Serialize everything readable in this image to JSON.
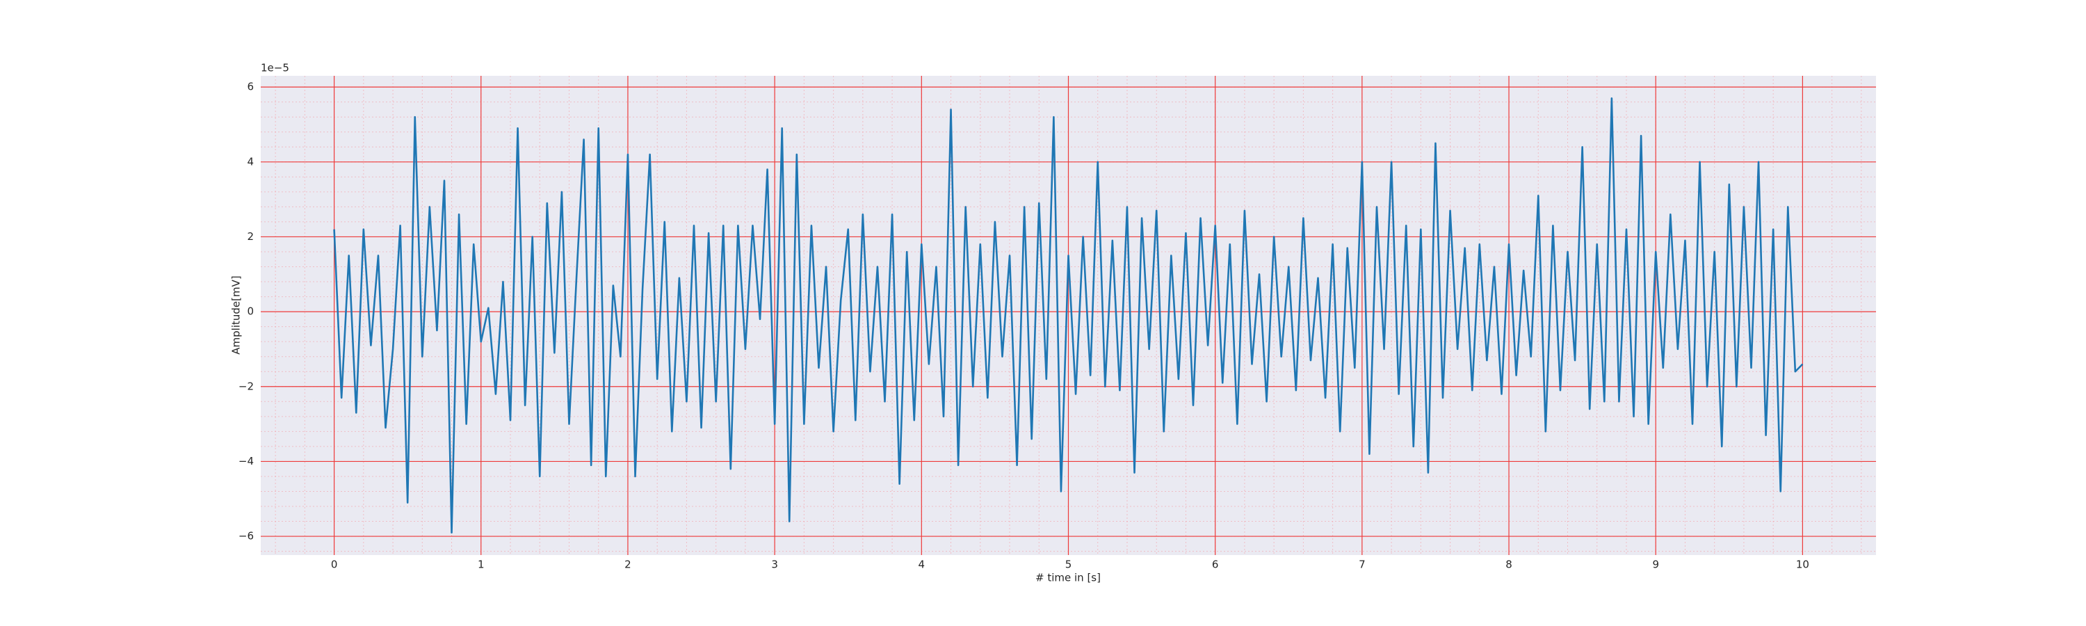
{
  "chart_data": {
    "type": "line",
    "xlabel": "# time in [s]",
    "ylabel": "Amplitude[mV]",
    "y_offset_text": "1e−5",
    "color": "#1f77b4",
    "grid": true,
    "minor_grid": true,
    "xlim": [
      -0.5,
      10.5
    ],
    "xticks": [
      0,
      1,
      2,
      3,
      4,
      5,
      6,
      7,
      8,
      9,
      10
    ],
    "ylim": [
      -6.5,
      6.3
    ],
    "yticks": [
      {
        "value": -6,
        "label": "−6"
      },
      {
        "value": -4,
        "label": "−4"
      },
      {
        "value": -2,
        "label": "−2"
      },
      0,
      2,
      4,
      6
    ],
    "x": [
      0,
      0.05,
      0.1,
      0.15,
      0.2,
      0.25,
      0.3,
      0.35,
      0.4,
      0.45,
      0.5,
      0.55,
      0.6,
      0.65,
      0.7,
      0.75,
      0.8,
      0.85,
      0.9,
      0.95,
      1,
      1.05,
      1.1,
      1.15,
      1.2,
      1.25,
      1.3,
      1.35,
      1.4,
      1.45,
      1.5,
      1.55,
      1.6,
      1.65,
      1.7,
      1.75,
      1.8,
      1.85,
      1.9,
      1.95,
      2,
      2.05,
      2.1,
      2.15,
      2.2,
      2.25,
      2.3,
      2.35,
      2.4,
      2.45,
      2.5,
      2.55,
      2.6,
      2.65,
      2.7,
      2.75,
      2.8,
      2.85,
      2.9,
      2.95,
      3,
      3.05,
      3.1,
      3.15,
      3.2,
      3.25,
      3.3,
      3.35,
      3.4,
      3.45,
      3.5,
      3.55,
      3.6,
      3.65,
      3.7,
      3.75,
      3.8,
      3.85,
      3.9,
      3.95,
      4,
      4.05,
      4.1,
      4.15,
      4.2,
      4.25,
      4.3,
      4.35,
      4.4,
      4.45,
      4.5,
      4.55,
      4.6,
      4.65,
      4.7,
      4.75,
      4.8,
      4.85,
      4.9,
      4.95,
      5,
      5.05,
      5.1,
      5.15,
      5.2,
      5.25,
      5.3,
      5.35,
      5.4,
      5.45,
      5.5,
      5.55,
      5.6,
      5.65,
      5.7,
      5.75,
      5.8,
      5.85,
      5.9,
      5.95,
      6,
      6.05,
      6.1,
      6.15,
      6.2,
      6.25,
      6.3,
      6.35,
      6.4,
      6.45,
      6.5,
      6.55,
      6.6,
      6.65,
      6.7,
      6.75,
      6.8,
      6.85,
      6.9,
      6.95,
      7,
      7.05,
      7.1,
      7.15,
      7.2,
      7.25,
      7.3,
      7.35,
      7.4,
      7.45,
      7.5,
      7.55,
      7.6,
      7.65,
      7.7,
      7.75,
      7.8,
      7.85,
      7.9,
      7.95,
      8,
      8.05,
      8.1,
      8.15,
      8.2,
      8.25,
      8.3,
      8.35,
      8.4,
      8.45,
      8.5,
      8.55,
      8.6,
      8.65,
      8.7,
      8.75,
      8.8,
      8.85,
      8.9,
      8.95,
      9,
      9.05,
      9.1,
      9.15,
      9.2,
      9.25,
      9.3,
      9.35,
      9.4,
      9.45,
      9.5,
      9.55,
      9.6,
      9.65,
      9.7,
      9.75,
      9.8,
      9.85,
      9.9,
      9.95,
      10
    ],
    "values": [
      2.2,
      -2.3,
      1.5,
      -2.7,
      2.2,
      -0.9,
      1.5,
      -3.1,
      -1.0,
      2.3,
      -5.1,
      5.2,
      -1.2,
      2.8,
      -0.5,
      3.5,
      -5.9,
      2.6,
      -3.0,
      1.8,
      -0.8,
      0.1,
      -2.2,
      0.8,
      -2.9,
      4.9,
      -2.5,
      2.0,
      -4.4,
      2.9,
      -1.1,
      3.2,
      -3.0,
      0.9,
      4.6,
      -4.1,
      4.9,
      -4.4,
      0.7,
      -1.2,
      4.2,
      -4.4,
      0.6,
      4.2,
      -1.8,
      2.4,
      -3.2,
      0.9,
      -2.4,
      2.3,
      -3.1,
      2.1,
      -2.4,
      2.3,
      -4.2,
      2.3,
      -1.0,
      2.3,
      -0.2,
      3.8,
      -3.0,
      4.9,
      -5.6,
      4.2,
      -3.0,
      2.3,
      -1.5,
      1.2,
      -3.2,
      0.3,
      2.2,
      -2.9,
      2.6,
      -1.6,
      1.2,
      -2.4,
      2.6,
      -4.6,
      1.6,
      -2.9,
      1.8,
      -1.4,
      1.2,
      -2.8,
      5.4,
      -4.1,
      2.8,
      -2.0,
      1.8,
      -2.3,
      2.4,
      -1.2,
      1.5,
      -4.1,
      2.8,
      -3.4,
      2.9,
      -1.8,
      5.2,
      -4.8,
      1.5,
      -2.2,
      2.0,
      -1.7,
      4.0,
      -2.0,
      1.9,
      -2.1,
      2.8,
      -4.3,
      2.5,
      -1.0,
      2.7,
      -3.2,
      1.5,
      -1.8,
      2.1,
      -2.5,
      2.5,
      -0.9,
      2.3,
      -1.9,
      1.8,
      -3.0,
      2.7,
      -1.4,
      1.0,
      -2.4,
      2.0,
      -1.2,
      1.2,
      -2.1,
      2.5,
      -1.3,
      0.9,
      -2.3,
      1.8,
      -3.2,
      1.7,
      -1.5,
      4.0,
      -3.8,
      2.8,
      -1.0,
      4.0,
      -2.2,
      2.3,
      -3.6,
      2.2,
      -4.3,
      4.5,
      -2.3,
      2.7,
      -1.0,
      1.7,
      -2.1,
      1.8,
      -1.3,
      1.2,
      -2.2,
      1.8,
      -1.7,
      1.1,
      -1.2,
      3.1,
      -3.2,
      2.3,
      -2.1,
      1.6,
      -1.3,
      4.4,
      -2.6,
      1.8,
      -2.4,
      5.7,
      -2.4,
      2.2,
      -2.8,
      4.7,
      -3.0,
      1.6,
      -1.5,
      2.6,
      -1.0,
      1.9,
      -3.0,
      4.0,
      -2.0,
      1.6,
      -3.6,
      3.4,
      -2.0,
      2.8,
      -1.5,
      4.0,
      -3.3,
      2.2,
      -4.8,
      2.8,
      -1.6,
      -1.4
    ]
  }
}
